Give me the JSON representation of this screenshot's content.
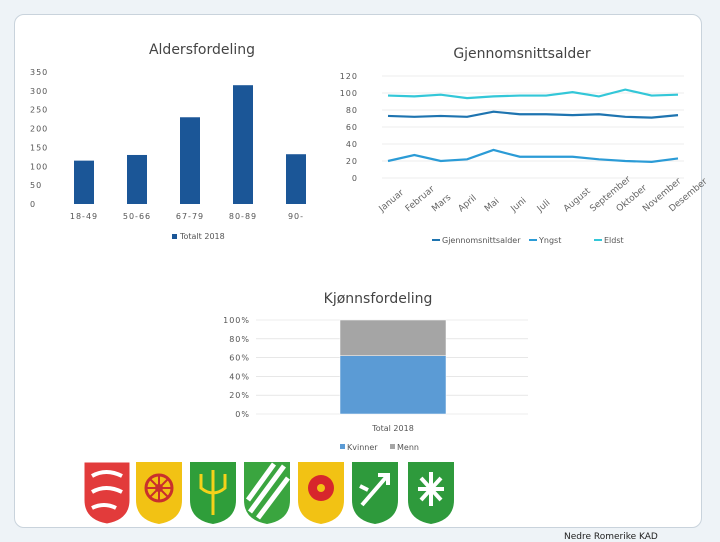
{
  "footer": "Nedre Romerike KAD",
  "colors": {
    "bar": "#1b5697",
    "avg": "#1e74b0",
    "young": "#2b9bd6",
    "old": "#33c7d8",
    "women": "#5b9bd5",
    "men": "#a5a5a5",
    "grid": "#d9d9d9"
  },
  "chart_data": [
    {
      "type": "bar",
      "title": "Aldersfordeling",
      "categories": [
        "18-49",
        "50-66",
        "67-79",
        "80-89",
        "90-"
      ],
      "series": [
        {
          "name": "Totalt 2018",
          "values": [
            115,
            130,
            230,
            315,
            132
          ]
        }
      ],
      "ylim": [
        0,
        350
      ],
      "yticks": [
        0,
        50,
        100,
        150,
        200,
        250,
        300,
        350
      ],
      "legend": "bottom"
    },
    {
      "type": "line",
      "title": "Gjennomsnittsalder",
      "categories": [
        "Januar",
        "Februar",
        "Mars",
        "April",
        "Mai",
        "Juni",
        "Juli",
        "August",
        "September",
        "Oktober",
        "November",
        "Desember"
      ],
      "series": [
        {
          "name": "Gjennomsnittsalder",
          "values": [
            73,
            72,
            73,
            72,
            78,
            75,
            75,
            74,
            75,
            72,
            71,
            74
          ]
        },
        {
          "name": "Yngst",
          "values": [
            20,
            27,
            20,
            22,
            33,
            25,
            25,
            25,
            22,
            20,
            19,
            23
          ]
        },
        {
          "name": "Eldst",
          "values": [
            97,
            96,
            98,
            94,
            96,
            97,
            97,
            101,
            96,
            104,
            97,
            98
          ]
        }
      ],
      "ylim": [
        0,
        120
      ],
      "yticks": [
        0,
        20,
        40,
        60,
        80,
        100,
        120
      ],
      "legend": "bottom"
    },
    {
      "type": "bar",
      "stacked": true,
      "title": "Kjønnsfordeling",
      "categories": [
        "Total 2018"
      ],
      "series": [
        {
          "name": "Kvinner",
          "values": [
            62
          ]
        },
        {
          "name": "Menn",
          "values": [
            38
          ]
        }
      ],
      "ylim": [
        0,
        100
      ],
      "yticks": [
        "0%",
        "20%",
        "40%",
        "60%",
        "80%",
        "100%"
      ],
      "legend": "bottom"
    }
  ],
  "crests": [
    {
      "name": "crest-lions",
      "label": ""
    },
    {
      "name": "crest-wheel",
      "label": ""
    },
    {
      "name": "crest-trident",
      "label": ""
    },
    {
      "name": "crest-stripes",
      "label": ""
    },
    {
      "name": "crest-rose",
      "label": ""
    },
    {
      "name": "crest-arrow",
      "label": ""
    },
    {
      "name": "crest-crosses",
      "label": ""
    }
  ]
}
